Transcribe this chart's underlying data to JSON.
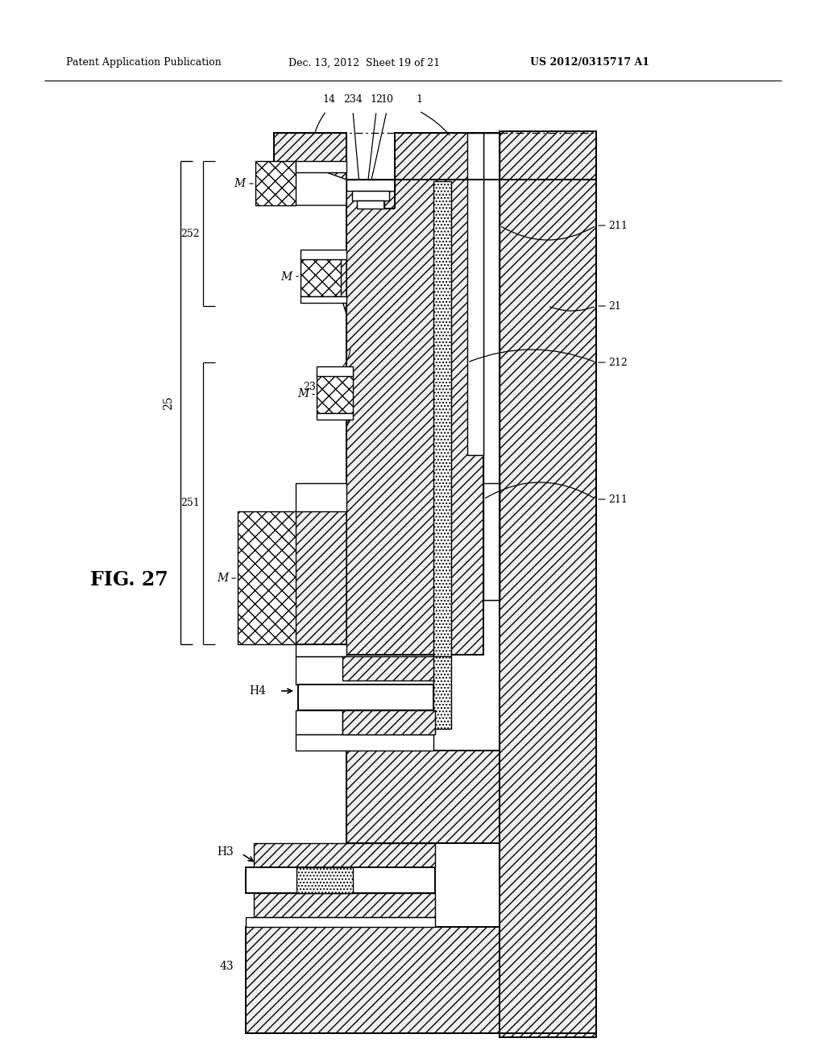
{
  "bg_color": "#ffffff",
  "header_left": "Patent Application Publication",
  "header_mid": "Dec. 13, 2012  Sheet 19 of 21",
  "header_right": "US 2012/0315717 A1",
  "fig_label": "FIG. 27"
}
